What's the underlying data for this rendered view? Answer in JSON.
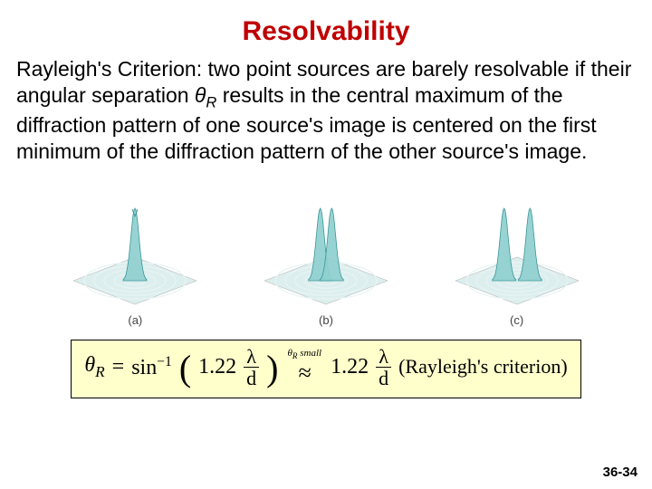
{
  "title": {
    "text": "Resolvability",
    "color": "#C00000",
    "fontsize": 30
  },
  "paragraph": {
    "prefix": "Rayleigh's Criterion: two point sources are barely resolvable if their angular separation ",
    "theta": "θ",
    "theta_sub": "R",
    "suffix": " results in the central maximum of the diffraction pattern of one source's image is centered on the first minimum of the diffraction pattern of the other source's image.",
    "fontsize": 23
  },
  "diagrams": {
    "labels": [
      "(a)",
      "(b)",
      "(c)"
    ],
    "peak_color": "#8FCFCF",
    "peak_edge": "#3A9696",
    "plane_fill": "#DDEEEE",
    "plane_edge": "#BBBBBB",
    "ripple_color": "#E8F4F4",
    "separations": [
      0.0,
      0.22,
      0.5
    ]
  },
  "formula": {
    "box_bg": "#FFFFCC",
    "theta": "θ",
    "theta_sub": "R",
    "eq": "=",
    "sin": "sin",
    "inv": "−1",
    "coef": "1.22",
    "lambda": "λ",
    "d": "d",
    "small_note_top": "θ",
    "small_note_sub": "R",
    "small_note_word": " small",
    "approx": "≈",
    "criterion": "(Rayleigh's criterion)"
  },
  "page": "36-34"
}
